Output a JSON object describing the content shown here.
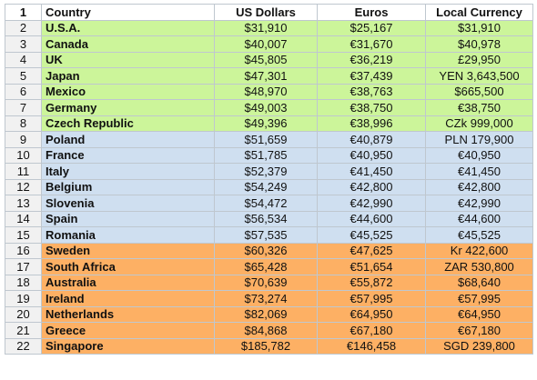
{
  "spreadsheet": {
    "header": {
      "row_number": "1",
      "country": "Country",
      "usd": "US Dollars",
      "eur": "Euros",
      "local": "Local Currency"
    },
    "group_colors": {
      "green": "#ccf59a",
      "blue": "#cfdff0",
      "orange": "#fdb064"
    },
    "rows": [
      {
        "num": "2",
        "country": "U.S.A.",
        "usd": "$31,910",
        "eur": "$25,167",
        "local": "$31,910",
        "group": "green"
      },
      {
        "num": "3",
        "country": "Canada",
        "usd": "$40,007",
        "eur": "€31,670",
        "local": "$40,978",
        "group": "green"
      },
      {
        "num": "4",
        "country": "UK",
        "usd": "$45,805",
        "eur": "€36,219",
        "local": "£29,950",
        "group": "green"
      },
      {
        "num": "5",
        "country": "Japan",
        "usd": "$47,301",
        "eur": "€37,439",
        "local": "YEN 3,643,500",
        "group": "green"
      },
      {
        "num": "6",
        "country": "Mexico",
        "usd": "$48,970",
        "eur": "€38,763",
        "local": "$665,500",
        "group": "green"
      },
      {
        "num": "7",
        "country": "Germany",
        "usd": "$49,003",
        "eur": "€38,750",
        "local": "€38,750",
        "group": "green"
      },
      {
        "num": "8",
        "country": "Czech Republic",
        "usd": "$49,396",
        "eur": "€38,996",
        "local": "CZk 999,000",
        "group": "green"
      },
      {
        "num": "9",
        "country": "Poland",
        "usd": "$51,659",
        "eur": "€40,879",
        "local": "PLN 179,900",
        "group": "blue"
      },
      {
        "num": "10",
        "country": "France",
        "usd": "$51,785",
        "eur": "€40,950",
        "local": "€40,950",
        "group": "blue"
      },
      {
        "num": "11",
        "country": "Italy",
        "usd": "$52,379",
        "eur": "€41,450",
        "local": "€41,450",
        "group": "blue"
      },
      {
        "num": "12",
        "country": "Belgium",
        "usd": "$54,249",
        "eur": "€42,800",
        "local": "€42,800",
        "group": "blue"
      },
      {
        "num": "13",
        "country": "Slovenia",
        "usd": "$54,472",
        "eur": "€42,990",
        "local": "€42,990",
        "group": "blue"
      },
      {
        "num": "14",
        "country": "Spain",
        "usd": "$56,534",
        "eur": "€44,600",
        "local": "€44,600",
        "group": "blue"
      },
      {
        "num": "15",
        "country": "Romania",
        "usd": "$57,535",
        "eur": "€45,525",
        "local": "€45,525",
        "group": "blue"
      },
      {
        "num": "16",
        "country": "Sweden",
        "usd": "$60,326",
        "eur": "€47,625",
        "local": "Kr 422,600",
        "group": "orange"
      },
      {
        "num": "17",
        "country": "South Africa",
        "usd": "$65,428",
        "eur": "€51,654",
        "local": "ZAR 530,800",
        "group": "orange"
      },
      {
        "num": "18",
        "country": "Australia",
        "usd": "$70,639",
        "eur": "€55,872",
        "local": "$68,640",
        "group": "orange"
      },
      {
        "num": "19",
        "country": "Ireland",
        "usd": "$73,274",
        "eur": "€57,995",
        "local": "€57,995",
        "group": "orange"
      },
      {
        "num": "20",
        "country": "Netherlands",
        "usd": "$82,069",
        "eur": "€64,950",
        "local": "€64,950",
        "group": "orange"
      },
      {
        "num": "21",
        "country": "Greece",
        "usd": "$84,868",
        "eur": "€67,180",
        "local": "€67,180",
        "group": "orange"
      },
      {
        "num": "22",
        "country": "Singapore",
        "usd": "$185,782",
        "eur": "€146,458",
        "local": "SGD 239,800",
        "group": "orange"
      }
    ]
  }
}
